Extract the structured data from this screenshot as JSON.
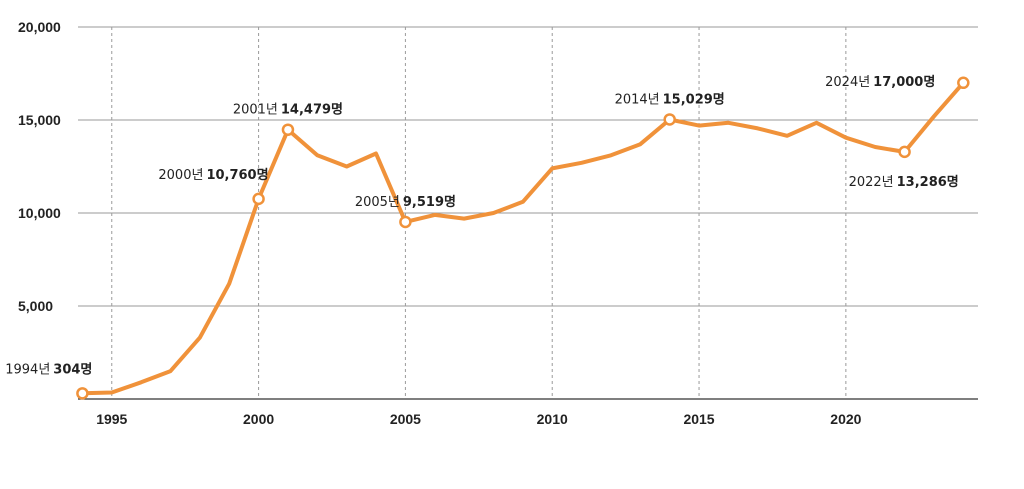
{
  "chart_data": {
    "type": "line",
    "x": [
      1994,
      1995,
      1996,
      1997,
      1998,
      1999,
      2000,
      2001,
      2002,
      2003,
      2004,
      2005,
      2006,
      2007,
      2008,
      2009,
      2010,
      2011,
      2012,
      2013,
      2014,
      2015,
      2016,
      2017,
      2018,
      2019,
      2020,
      2021,
      2022,
      2023,
      2024
    ],
    "series": [
      {
        "values": [
          304,
          350,
          900,
          1500,
          3300,
          6200,
          10760,
          14479,
          13100,
          12500,
          13200,
          9519,
          9900,
          9700,
          10000,
          10600,
          12400,
          12700,
          13100,
          13700,
          15029,
          14700,
          14850,
          14550,
          14150,
          14850,
          14050,
          13550,
          13286,
          15200,
          17000
        ],
        "color": "#f0923a"
      }
    ],
    "xlim": [
      1993.85,
      2024.5
    ],
    "ylim": [
      0,
      20000
    ],
    "x_ticks": [
      "1995",
      "2000",
      "2005",
      "2010",
      "2015",
      "2020"
    ],
    "x_tick_values": [
      1995,
      2000,
      2005,
      2010,
      2015,
      2020
    ],
    "y_ticks": [
      "20,000",
      "15,000",
      "10,000",
      "5,000"
    ],
    "y_tick_values": [
      20000,
      15000,
      10000,
      5000
    ],
    "grid": {
      "horizontal": "solid",
      "vertical": "dashed"
    },
    "annotations": [
      {
        "x": 1994,
        "y": 304,
        "year_label": "1994년",
        "value_label": "304명",
        "side": "above-left"
      },
      {
        "x": 2000,
        "y": 10760,
        "year_label": "2000년",
        "value_label": "10,760명",
        "side": "above-left"
      },
      {
        "x": 2001,
        "y": 14479,
        "year_label": "2001년",
        "value_label": "14,479명",
        "side": "above"
      },
      {
        "x": 2005,
        "y": 9519,
        "year_label": "2005년",
        "value_label": "9,519명",
        "side": "above"
      },
      {
        "x": 2014,
        "y": 15029,
        "year_label": "2014년",
        "value_label": "15,029명",
        "side": "above"
      },
      {
        "x": 2022,
        "y": 13286,
        "year_label": "2022년",
        "value_label": "13,286명",
        "side": "below"
      },
      {
        "x": 2024,
        "y": 17000,
        "year_label": "2024년",
        "value_label": "17,000명",
        "side": "left"
      }
    ],
    "colors": {
      "line": "#f0923a",
      "grid": "#9a9a9a",
      "text": "#222222",
      "marker_fill": "#ffffff"
    }
  }
}
